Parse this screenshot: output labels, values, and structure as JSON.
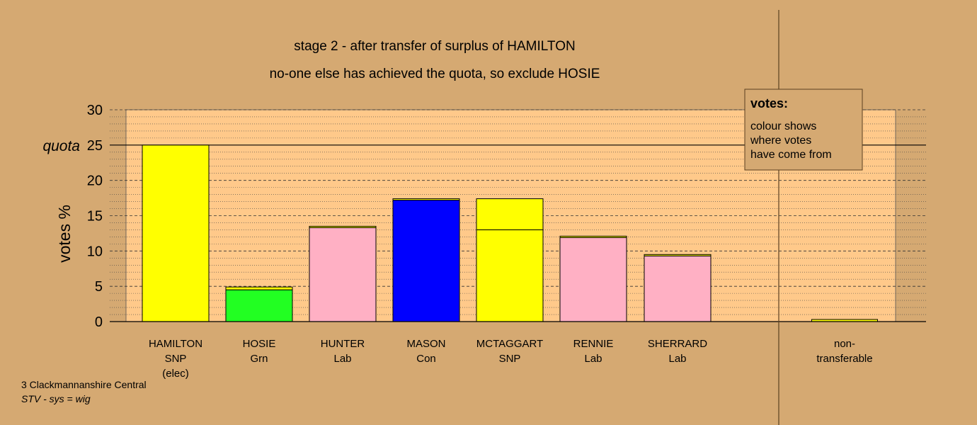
{
  "chart_data": {
    "type": "bar",
    "title": "stage 2 - after transfer of surplus of HAMILTON",
    "subtitle": "no-one else has achieved the quota, so exclude HOSIE",
    "ylabel": "votes %",
    "ylim": [
      0,
      30
    ],
    "yticks": [
      0,
      5,
      10,
      15,
      20,
      25,
      30
    ],
    "quota": 25,
    "quota_label": "quota",
    "grid": true,
    "categories": [
      {
        "lines": [
          "HAMILTON",
          "SNP",
          "(elec)"
        ]
      },
      {
        "lines": [
          "HOSIE",
          "Grn"
        ]
      },
      {
        "lines": [
          "HUNTER",
          "Lab"
        ]
      },
      {
        "lines": [
          "MASON",
          "Con"
        ]
      },
      {
        "lines": [
          "MCTAGGART",
          "SNP"
        ]
      },
      {
        "lines": [
          "RENNIE",
          "Lab"
        ]
      },
      {
        "lines": [
          "SHERRARD",
          "Lab"
        ]
      },
      {
        "lines": [
          "non-",
          "transferable"
        ]
      }
    ],
    "bars": [
      {
        "segments": [
          {
            "value": 25.0,
            "color": "#ffff00"
          }
        ]
      },
      {
        "segments": [
          {
            "value": 4.5,
            "color": "#22ff22"
          },
          {
            "value": 0.4,
            "color": "#ffff00"
          }
        ]
      },
      {
        "segments": [
          {
            "value": 13.3,
            "color": "#ffb0c4"
          },
          {
            "value": 0.2,
            "color": "#ffff00"
          }
        ]
      },
      {
        "segments": [
          {
            "value": 17.2,
            "color": "#0000ff"
          },
          {
            "value": 0.2,
            "color": "#ffff00"
          }
        ]
      },
      {
        "segments": [
          {
            "value": 13.0,
            "color": "#ffff00"
          },
          {
            "value": 4.4,
            "color": "#ffff00"
          }
        ]
      },
      {
        "segments": [
          {
            "value": 11.9,
            "color": "#ffb0c4"
          },
          {
            "value": 0.2,
            "color": "#ffff00"
          }
        ]
      },
      {
        "segments": [
          {
            "value": 9.3,
            "color": "#ffb0c4"
          },
          {
            "value": 0.2,
            "color": "#ffff00"
          }
        ]
      },
      {
        "segments": [
          {
            "value": 0.3,
            "color": "#ffff00"
          }
        ]
      }
    ],
    "legend": {
      "title": "votes:",
      "lines": [
        "colour shows",
        "where votes",
        "have come from"
      ],
      "placement": "top-right"
    },
    "colors": {
      "background": "#d5a972",
      "plot_area": "#ffc98a"
    }
  },
  "footer": {
    "line1": "3 Clackmannanshire Central",
    "line2": "STV - sys = wig"
  }
}
